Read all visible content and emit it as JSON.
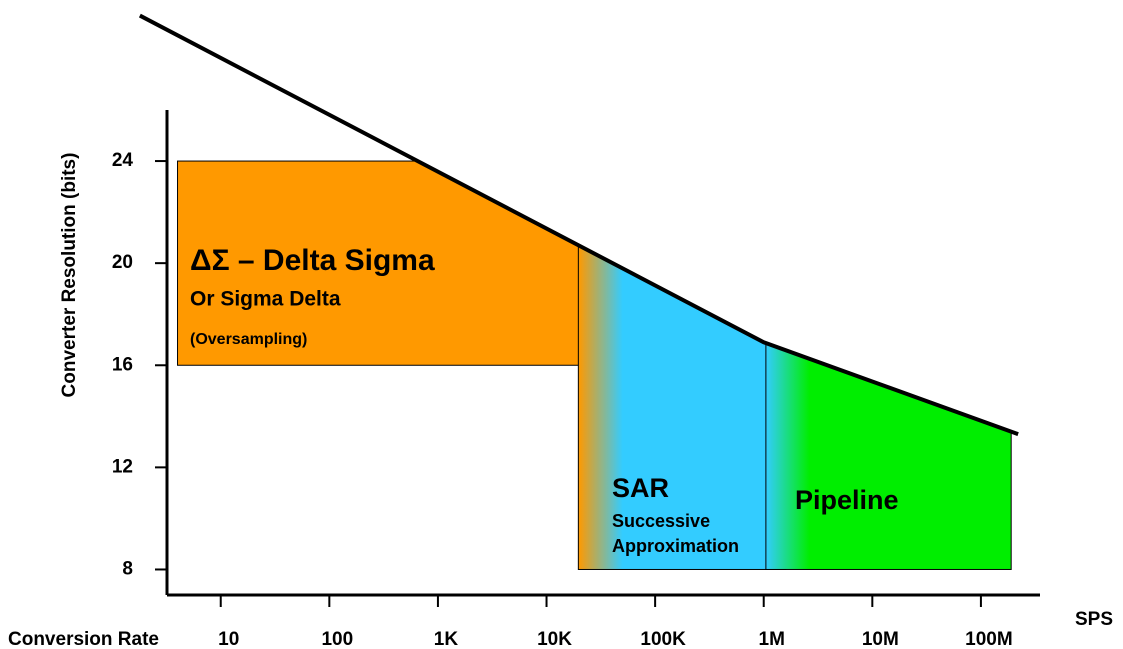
{
  "chart_data": {
    "type": "region",
    "y_label": "Converter Resolution (bits)",
    "x_label": "Conversion Rate",
    "x_unit": "SPS",
    "xlog": true,
    "xlim": [
      3.2,
      350000000
    ],
    "ylim": [
      7,
      26
    ],
    "xticks": [
      10,
      100,
      {
        "value": 1000,
        "label": "1K"
      },
      {
        "value": 10000,
        "label": "10K"
      },
      {
        "value": 100000,
        "label": "100K"
      },
      {
        "value": 1000000,
        "label": "1M"
      },
      {
        "value": 10000000,
        "label": "10M"
      },
      {
        "value": 100000000,
        "label": "100M"
      }
    ],
    "yticks": [
      8,
      12,
      16,
      20,
      24
    ],
    "boundary": {
      "x": [
        1.8,
        1000000,
        220000000
      ],
      "values": [
        29.7,
        16.9,
        13.3
      ],
      "color": "#000000"
    },
    "regions": [
      {
        "name": "ΔΣ – Delta Sigma",
        "lines": [
          "Or Sigma Delta",
          "(Oversampling)"
        ],
        "color": "#ff9900",
        "x": [
          4,
          30000
        ],
        "y": [
          16,
          24
        ]
      },
      {
        "name": "SAR",
        "lines": [
          "Successive",
          "Approximation"
        ],
        "color": "#33ccff",
        "x": [
          30000,
          1600000
        ],
        "y": [
          8,
          24
        ]
      },
      {
        "name": "Pipeline",
        "lines": [],
        "color": "#00ee00",
        "x": [
          1600000,
          190000000
        ],
        "y": [
          8,
          24
        ]
      }
    ]
  }
}
